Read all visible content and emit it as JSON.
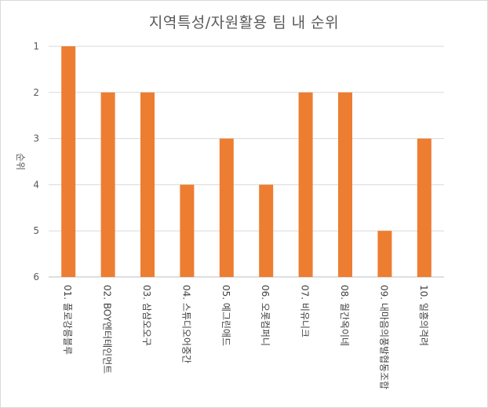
{
  "chart_data": {
    "type": "bar",
    "title": "지역특성/자원활용 팀 내 순위",
    "ylabel": "순위",
    "xlabel": "",
    "y_reversed": true,
    "ylim": [
      1,
      6
    ],
    "yticks": [
      1,
      2,
      3,
      4,
      5,
      6
    ],
    "grid": true,
    "legend": "none",
    "bar_color": "#ED7D31",
    "categories": [
      "01. 플로강릉블루",
      "02. BOY엔터테인먼트",
      "03. 삼삼오오구",
      "04. 스튜디오어중간",
      "05. 예그린애드",
      "06. 오롯컴퍼니",
      "07. 비유니크",
      "08. 월간옥이네",
      "09. 내마음의풍발협동조합",
      "10. 일흥의격려"
    ],
    "values": [
      1,
      2,
      2,
      4,
      3,
      4,
      2,
      2,
      5,
      3
    ]
  }
}
